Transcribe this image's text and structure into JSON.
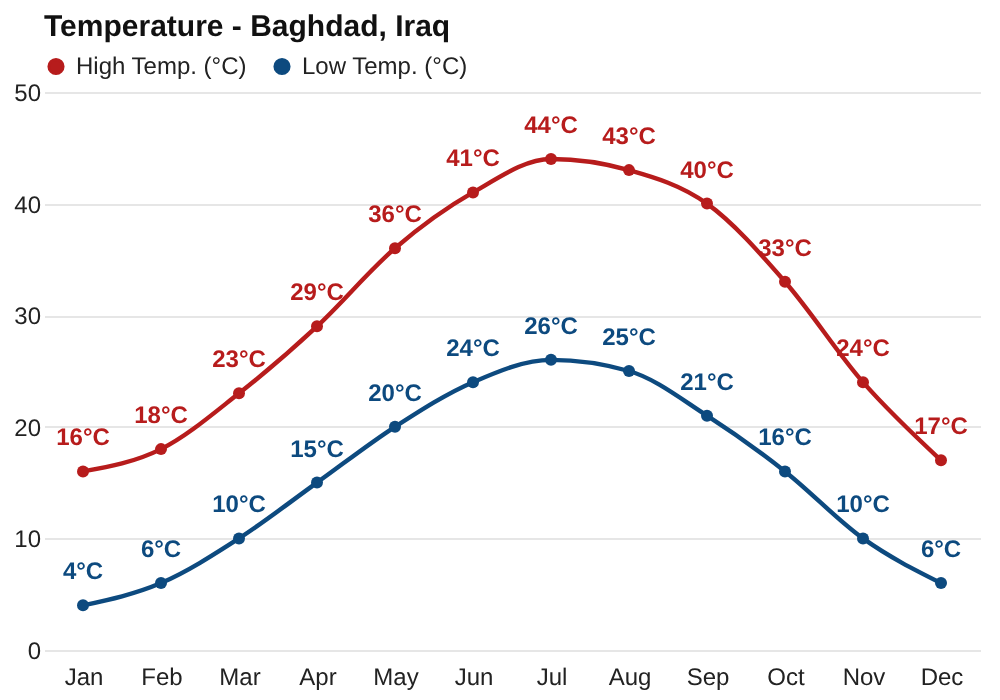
{
  "chart_data": {
    "type": "line",
    "title": "Temperature - Baghdad, Iraq",
    "categories": [
      "Jan",
      "Feb",
      "Mar",
      "Apr",
      "May",
      "Jun",
      "Jul",
      "Aug",
      "Sep",
      "Oct",
      "Nov",
      "Dec"
    ],
    "series": [
      {
        "name": "High Temp. (°C)",
        "color": "#b71c1c",
        "values": [
          16,
          18,
          23,
          29,
          36,
          41,
          44,
          43,
          40,
          33,
          24,
          17
        ],
        "value_labels": [
          "16°C",
          "18°C",
          "23°C",
          "29°C",
          "36°C",
          "41°C",
          "44°C",
          "43°C",
          "40°C",
          "33°C",
          "24°C",
          "17°C"
        ]
      },
      {
        "name": "Low Temp. (°C)",
        "color": "#0d4a7f",
        "values": [
          4,
          6,
          10,
          15,
          20,
          24,
          26,
          25,
          21,
          16,
          10,
          6
        ],
        "value_labels": [
          "4°C",
          "6°C",
          "10°C",
          "15°C",
          "20°C",
          "24°C",
          "26°C",
          "25°C",
          "21°C",
          "16°C",
          "10°C",
          "6°C"
        ]
      }
    ],
    "ylim": [
      0,
      50
    ],
    "yticks": [
      0,
      10,
      20,
      30,
      40,
      50
    ],
    "grid": "y",
    "legend": "top left",
    "marker": "circle",
    "line_style": "solid"
  }
}
